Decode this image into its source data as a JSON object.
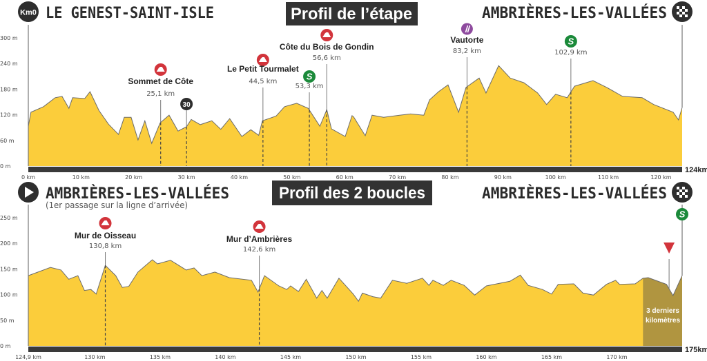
{
  "colors": {
    "profile": "#fbcd3b",
    "profile_line": "#6b6b6b",
    "bar": "#3a3a3a",
    "last_km": "#b09540",
    "kom": "#d2343b",
    "sprint": "#1b8a3a",
    "feed": "#8e4a9e",
    "dark": "#2e2e2e"
  },
  "stage": {
    "start_badge": "Km0",
    "start": "LE GENEST-SAINT-ISLE",
    "title": "Profil de l’étape",
    "finish": "AMBRIÈRES-LES-VALLÉES"
  },
  "loops": {
    "start": "AMBRIÈRES-LES-VALLÉES",
    "start_note": "(1er passage sur la ligne d’arrivée)",
    "title": "Profil des 2 boucles",
    "finish": "AMBRIÈRES-LES-VALLÉES",
    "last_km_label_1": "3 derniers",
    "last_km_label_2": "kilomètres"
  },
  "chart_data": [
    {
      "type": "area",
      "title": "Profil de l’étape",
      "xlabel": "km",
      "ylabel": "m",
      "xlim": [
        0,
        124
      ],
      "ylim": [
        0,
        300
      ],
      "total_label": "124km",
      "yticks": [
        {
          "v": 0,
          "label": "0 m"
        },
        {
          "v": 60,
          "label": "60 m"
        },
        {
          "v": 120,
          "label": "120 m"
        },
        {
          "v": 180,
          "label": "180 m"
        },
        {
          "v": 240,
          "label": "240 m"
        },
        {
          "v": 300,
          "label": "300 m"
        }
      ],
      "xticks": [
        {
          "v": 0,
          "label": "0 km"
        },
        {
          "v": 10,
          "label": "10 km"
        },
        {
          "v": 20,
          "label": "20 km"
        },
        {
          "v": 30,
          "label": "30 km"
        },
        {
          "v": 40,
          "label": "40 km"
        },
        {
          "v": 50,
          "label": "50 km"
        },
        {
          "v": 60,
          "label": "60 km"
        },
        {
          "v": 70,
          "label": "70 km"
        },
        {
          "v": 80,
          "label": "80 km"
        },
        {
          "v": 90,
          "label": "90 km"
        },
        {
          "v": 100,
          "label": "100 km"
        },
        {
          "v": 110,
          "label": "110 km"
        },
        {
          "v": 120,
          "label": "120 km"
        }
      ],
      "profile": [
        [
          0,
          93
        ],
        [
          0.5,
          126
        ],
        [
          2.9,
          139
        ],
        [
          5.1,
          160
        ],
        [
          6.4,
          163
        ],
        [
          7.7,
          135
        ],
        [
          8.4,
          160
        ],
        [
          10.7,
          158
        ],
        [
          11.7,
          174
        ],
        [
          13.4,
          130
        ],
        [
          15.2,
          98
        ],
        [
          17.1,
          74
        ],
        [
          18.2,
          114
        ],
        [
          19.5,
          114
        ],
        [
          20.8,
          61
        ],
        [
          22.1,
          106
        ],
        [
          23.4,
          53
        ],
        [
          25,
          101
        ],
        [
          26.7,
          119
        ],
        [
          28.4,
          82
        ],
        [
          30,
          92
        ],
        [
          30.9,
          109
        ],
        [
          32.6,
          97
        ],
        [
          34.8,
          106
        ],
        [
          36.5,
          86
        ],
        [
          38.2,
          111
        ],
        [
          40.5,
          69
        ],
        [
          42.2,
          85
        ],
        [
          43.7,
          72
        ],
        [
          44.4,
          106
        ],
        [
          47,
          117
        ],
        [
          48.6,
          139
        ],
        [
          50.9,
          147
        ],
        [
          53.1,
          135
        ],
        [
          55.3,
          93
        ],
        [
          56.6,
          132
        ],
        [
          57.5,
          87
        ],
        [
          60.1,
          69
        ],
        [
          61.4,
          118
        ],
        [
          61.7,
          115
        ],
        [
          63.9,
          71
        ],
        [
          65.2,
          119
        ],
        [
          67.4,
          114
        ],
        [
          70.4,
          119
        ],
        [
          72.5,
          122
        ],
        [
          75,
          119
        ],
        [
          76.1,
          155
        ],
        [
          77.8,
          174
        ],
        [
          79.6,
          190
        ],
        [
          81.6,
          126
        ],
        [
          83,
          184
        ],
        [
          85.5,
          206
        ],
        [
          86.8,
          171
        ],
        [
          89.2,
          235
        ],
        [
          91.4,
          206
        ],
        [
          94,
          195
        ],
        [
          96.6,
          171
        ],
        [
          98.3,
          144
        ],
        [
          100,
          168
        ],
        [
          102.2,
          160
        ],
        [
          103.6,
          187
        ],
        [
          107.1,
          200
        ],
        [
          109.7,
          184
        ],
        [
          112.7,
          163
        ],
        [
          116.4,
          160
        ],
        [
          118.6,
          144
        ],
        [
          122.3,
          126
        ],
        [
          123.3,
          108
        ],
        [
          124,
          137
        ]
      ],
      "markers": [
        {
          "type": "kom",
          "name": "Sommet de Côte",
          "km": 25.1,
          "km_label": "25,1 km"
        },
        {
          "type": "km30",
          "name": "",
          "km": 30,
          "badge": "30"
        },
        {
          "type": "kom",
          "name": "Le Petit Tourmalet",
          "km": 44.5,
          "km_label": "44,5 km"
        },
        {
          "type": "sprint",
          "name": "",
          "km": 53.3,
          "km_label": "53,3 km"
        },
        {
          "type": "kom",
          "name": "Côte du Bois de Gondin",
          "km": 56.6,
          "km_label": "56,6 km"
        },
        {
          "type": "feed",
          "name": "Vautorte",
          "km": 83.2,
          "km_label": "83,2 km"
        },
        {
          "type": "sprint",
          "name": "",
          "km": 102.9,
          "km_label": "102,9 km"
        }
      ]
    },
    {
      "type": "area",
      "title": "Profil des 2 boucles",
      "xlabel": "km",
      "ylabel": "m",
      "xlim": [
        124.9,
        175
      ],
      "ylim": [
        0,
        250
      ],
      "total_label": "175km",
      "last_km_from": 172,
      "yticks": [
        {
          "v": 0,
          "label": "0 m"
        },
        {
          "v": 50,
          "label": "50 m"
        },
        {
          "v": 100,
          "label": "100 m"
        },
        {
          "v": 150,
          "label": "150 m"
        },
        {
          "v": 200,
          "label": "200 m"
        },
        {
          "v": 250,
          "label": "250 m"
        }
      ],
      "xticks": [
        {
          "v": 124.9,
          "label": "124,9 km"
        },
        {
          "v": 130,
          "label": "130 km"
        },
        {
          "v": 135,
          "label": "135 km"
        },
        {
          "v": 140,
          "label": "140 km"
        },
        {
          "v": 145,
          "label": "145 km"
        },
        {
          "v": 150,
          "label": "150 km"
        },
        {
          "v": 155,
          "label": "155 km"
        },
        {
          "v": 160,
          "label": "160 km"
        },
        {
          "v": 165,
          "label": "165 km"
        },
        {
          "v": 170,
          "label": "170 km"
        }
      ],
      "profile": [
        [
          124.9,
          137
        ],
        [
          126.6,
          153
        ],
        [
          127.4,
          148
        ],
        [
          128,
          130
        ],
        [
          128.7,
          137
        ],
        [
          129.2,
          108
        ],
        [
          129.7,
          110
        ],
        [
          130.1,
          101
        ],
        [
          130.8,
          157
        ],
        [
          131.6,
          137
        ],
        [
          132.1,
          114
        ],
        [
          132.6,
          116
        ],
        [
          133.3,
          144
        ],
        [
          134.4,
          168
        ],
        [
          134.8,
          160
        ],
        [
          135.8,
          167
        ],
        [
          137,
          148
        ],
        [
          137.6,
          152
        ],
        [
          138.2,
          137
        ],
        [
          139.2,
          144
        ],
        [
          140.3,
          133
        ],
        [
          142,
          128
        ],
        [
          142.5,
          105
        ],
        [
          143,
          137
        ],
        [
          144.1,
          117
        ],
        [
          144.7,
          110
        ],
        [
          145,
          117
        ],
        [
          145.6,
          106
        ],
        [
          146.2,
          130
        ],
        [
          147,
          93
        ],
        [
          147.4,
          108
        ],
        [
          147.8,
          93
        ],
        [
          148.7,
          132
        ],
        [
          149.8,
          101
        ],
        [
          150.2,
          87
        ],
        [
          150.5,
          103
        ],
        [
          151.3,
          96
        ],
        [
          151.9,
          93
        ],
        [
          152.8,
          128
        ],
        [
          153.9,
          122
        ],
        [
          155.1,
          132
        ],
        [
          155.6,
          118
        ],
        [
          155.9,
          128
        ],
        [
          156.7,
          118
        ],
        [
          157.3,
          128
        ],
        [
          158.3,
          118
        ],
        [
          159.1,
          99
        ],
        [
          160,
          117
        ],
        [
          161.8,
          126
        ],
        [
          162.6,
          138
        ],
        [
          163.2,
          118
        ],
        [
          164.3,
          110
        ],
        [
          165,
          101
        ],
        [
          165.5,
          120
        ],
        [
          166.7,
          121
        ],
        [
          167.4,
          103
        ],
        [
          168.2,
          99
        ],
        [
          169.2,
          120
        ],
        [
          169.9,
          128
        ],
        [
          170.2,
          120
        ],
        [
          171.4,
          121
        ],
        [
          172,
          132
        ],
        [
          172.4,
          133
        ],
        [
          173.8,
          120
        ],
        [
          174.3,
          98
        ],
        [
          175,
          137
        ]
      ],
      "markers": [
        {
          "type": "kom",
          "name": "Mur de Oisseau",
          "km": 130.8,
          "km_label": "130,8 km"
        },
        {
          "type": "kom",
          "name": "Mur d’Ambrières",
          "km": 142.6,
          "km_label": "142,6 km"
        },
        {
          "type": "flamme",
          "name": "",
          "km": 174
        },
        {
          "type": "sprint",
          "name": "",
          "km": 175
        }
      ]
    }
  ]
}
